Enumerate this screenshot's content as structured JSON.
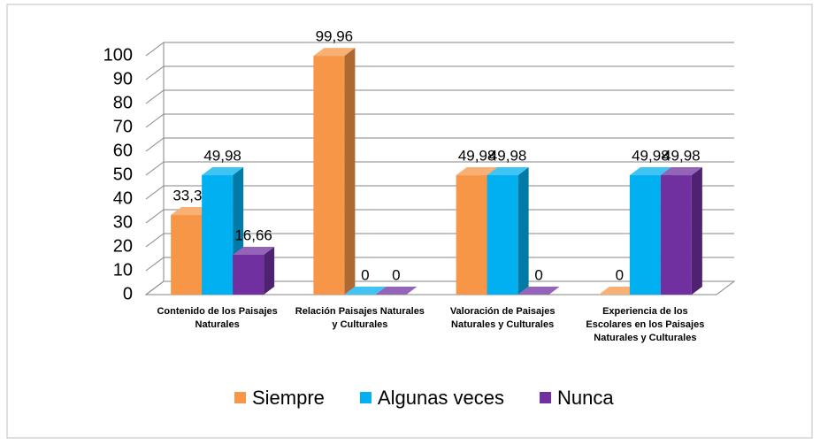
{
  "chart_data": {
    "type": "bar3d",
    "categories": [
      "Contenido de los Paisajes Naturales",
      "Relación Paisajes Naturales y Culturales",
      "Valoración de Paisajes Naturales y Culturales",
      "Experiencia de los Escolares en los Paisajes Naturales y Culturales"
    ],
    "series": [
      {
        "name": "Siempre",
        "color": "#f79646",
        "values": [
          33.32,
          99.96,
          49.98,
          0
        ],
        "value_labels": [
          "33,32",
          "99,96",
          "49,98",
          "0"
        ]
      },
      {
        "name": "Algunas veces",
        "color": "#00b0f0",
        "values": [
          49.98,
          0,
          49.98,
          49.98
        ],
        "value_labels": [
          "49,98",
          "0",
          "49,98",
          "49,98"
        ]
      },
      {
        "name": "Nunca",
        "color": "#7030a0",
        "values": [
          16.66,
          0,
          0,
          49.98
        ],
        "value_labels": [
          "16,66",
          "0",
          "0",
          "49,98"
        ]
      }
    ],
    "ylim": [
      0,
      100
    ],
    "yticks": [
      0,
      10,
      20,
      30,
      40,
      50,
      60,
      70,
      80,
      90,
      100
    ],
    "grid": true,
    "legend": "bottom"
  }
}
